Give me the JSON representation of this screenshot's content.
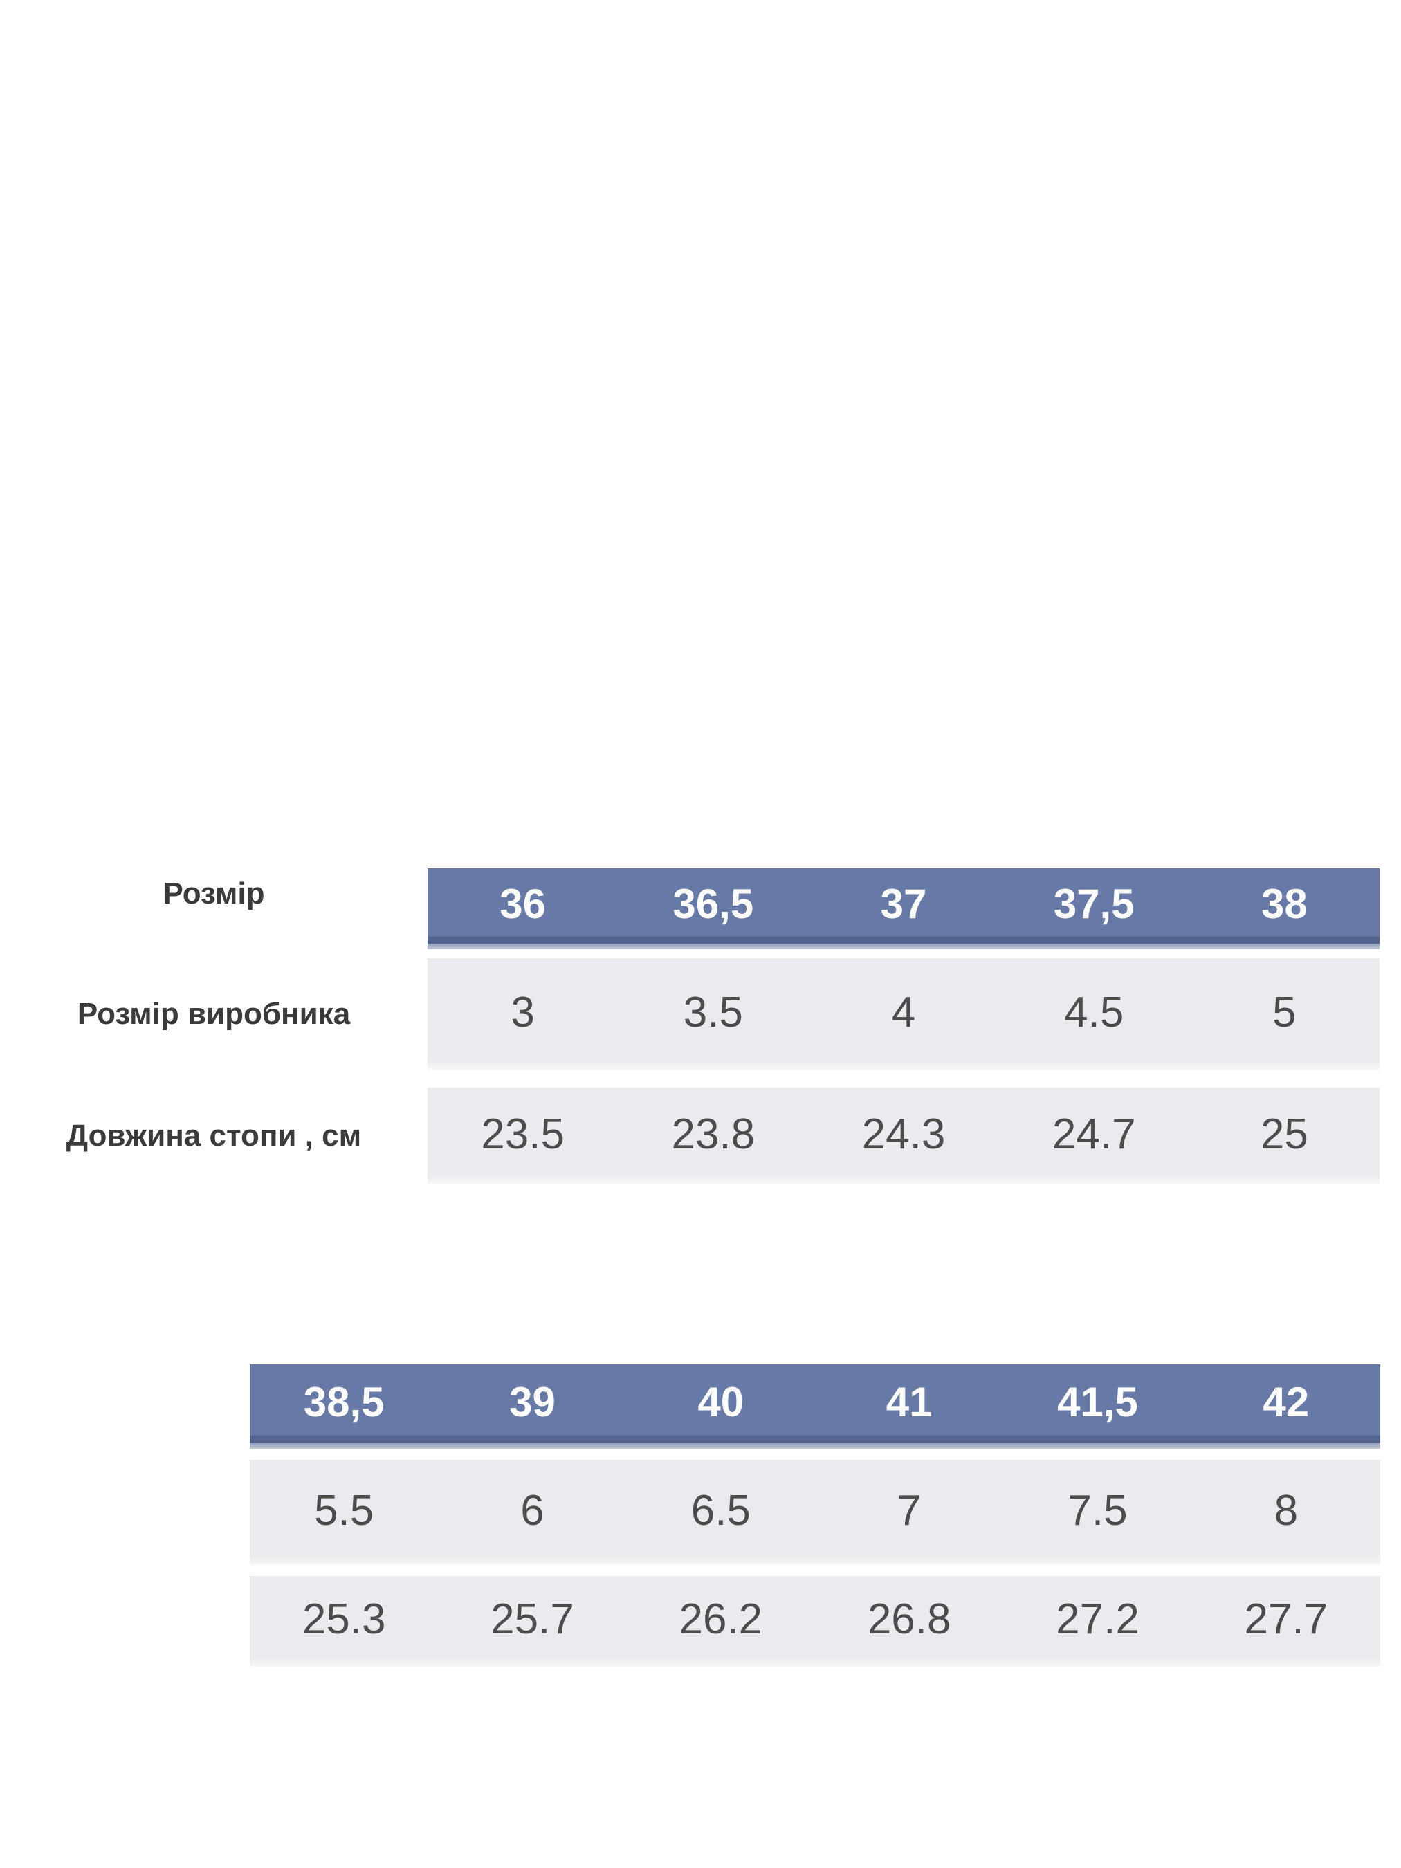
{
  "colors": {
    "header_blue": "#6679a7",
    "header_blue_dark_edge": "#536490",
    "row_gray": "#e9ebee",
    "header_text": "#fdfdfd",
    "value_text": "#4c4c4c",
    "label_text": "#3a3a3a",
    "background": "#ffffff"
  },
  "chart_data": [
    {
      "type": "table",
      "header_label": "Розмір",
      "header_values": [
        "36",
        "36,5",
        "37",
        "37,5",
        "38"
      ],
      "rows": [
        {
          "label": "Розмір виробника",
          "values": [
            "3",
            "3.5",
            "4",
            "4.5",
            "5"
          ]
        },
        {
          "label": "Довжина стопи , см",
          "values": [
            "23.5",
            "23.8",
            "24.3",
            "24.7",
            "25"
          ]
        }
      ]
    },
    {
      "type": "table",
      "header_label": "",
      "header_values": [
        "38,5",
        "39",
        "40",
        "41",
        "41,5",
        "42"
      ],
      "rows": [
        {
          "label": "",
          "values": [
            "5.5",
            "6",
            "6.5",
            "7",
            "7.5",
            "8"
          ]
        },
        {
          "label": "",
          "values": [
            "25.3",
            "25.7",
            "26.2",
            "26.8",
            "27.2",
            "27.7"
          ]
        }
      ]
    }
  ]
}
